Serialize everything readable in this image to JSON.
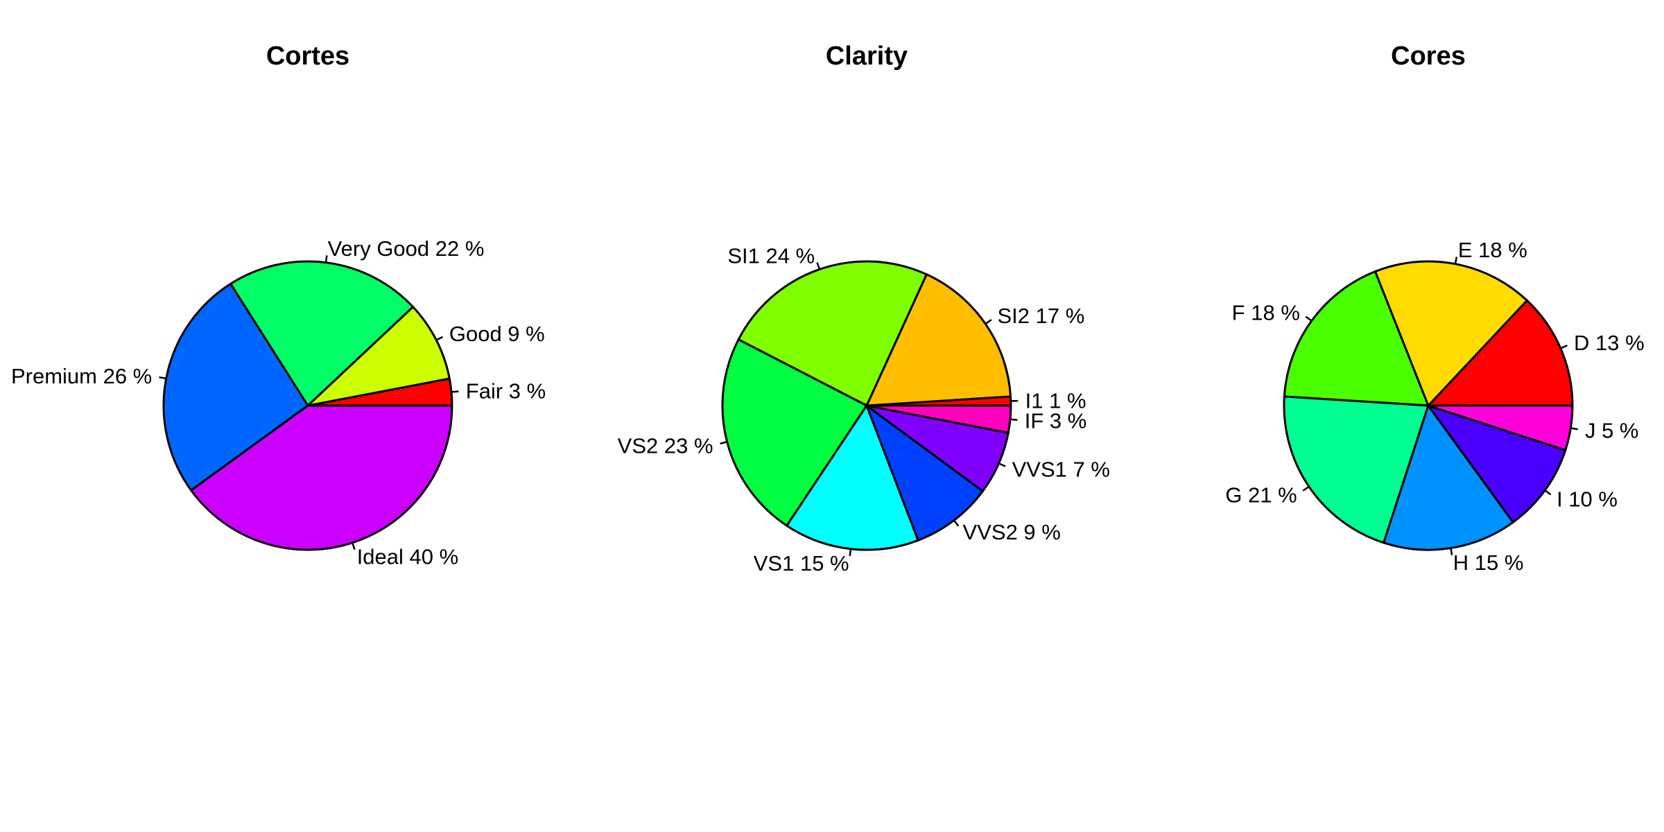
{
  "chart_data": [
    {
      "type": "pie",
      "title": "Cortes",
      "slices": [
        {
          "label": "Fair 3 %",
          "value": 3,
          "color": "#FF0000"
        },
        {
          "label": "Good 9 %",
          "value": 9,
          "color": "#CCFF00"
        },
        {
          "label": "Very Good 22 %",
          "value": 22,
          "color": "#00FF66"
        },
        {
          "label": "Premium 26 %",
          "value": 26,
          "color": "#0066FF"
        },
        {
          "label": "Ideal 40 %",
          "value": 40,
          "color": "#CC00FF"
        }
      ]
    },
    {
      "type": "pie",
      "title": "Clarity",
      "slices": [
        {
          "label": "I1 1 %",
          "value": 1,
          "color": "#FF0000"
        },
        {
          "label": "SI2 17 %",
          "value": 17,
          "color": "#FFBF00"
        },
        {
          "label": "SI1 24 %",
          "value": 24,
          "color": "#80FF00"
        },
        {
          "label": "VS2 23 %",
          "value": 23,
          "color": "#00FF40"
        },
        {
          "label": "VS1 15 %",
          "value": 15,
          "color": "#00FFFF"
        },
        {
          "label": "VVS2 9 %",
          "value": 9,
          "color": "#0040FF"
        },
        {
          "label": "VVS1 7 %",
          "value": 7,
          "color": "#8000FF"
        },
        {
          "label": "IF 3 %",
          "value": 3,
          "color": "#FF00BF"
        }
      ]
    },
    {
      "type": "pie",
      "title": "Cores",
      "slices": [
        {
          "label": "D 13 %",
          "value": 13,
          "color": "#FF0000"
        },
        {
          "label": "E 18 %",
          "value": 18,
          "color": "#FFDB00"
        },
        {
          "label": "F 18 %",
          "value": 18,
          "color": "#49FF00"
        },
        {
          "label": "G 21 %",
          "value": 21,
          "color": "#00FF92"
        },
        {
          "label": "H 15 %",
          "value": 15,
          "color": "#0092FF"
        },
        {
          "label": "I 10 %",
          "value": 10,
          "color": "#4900FF"
        },
        {
          "label": "J 5 %",
          "value": 5,
          "color": "#FF00DB"
        }
      ]
    }
  ]
}
